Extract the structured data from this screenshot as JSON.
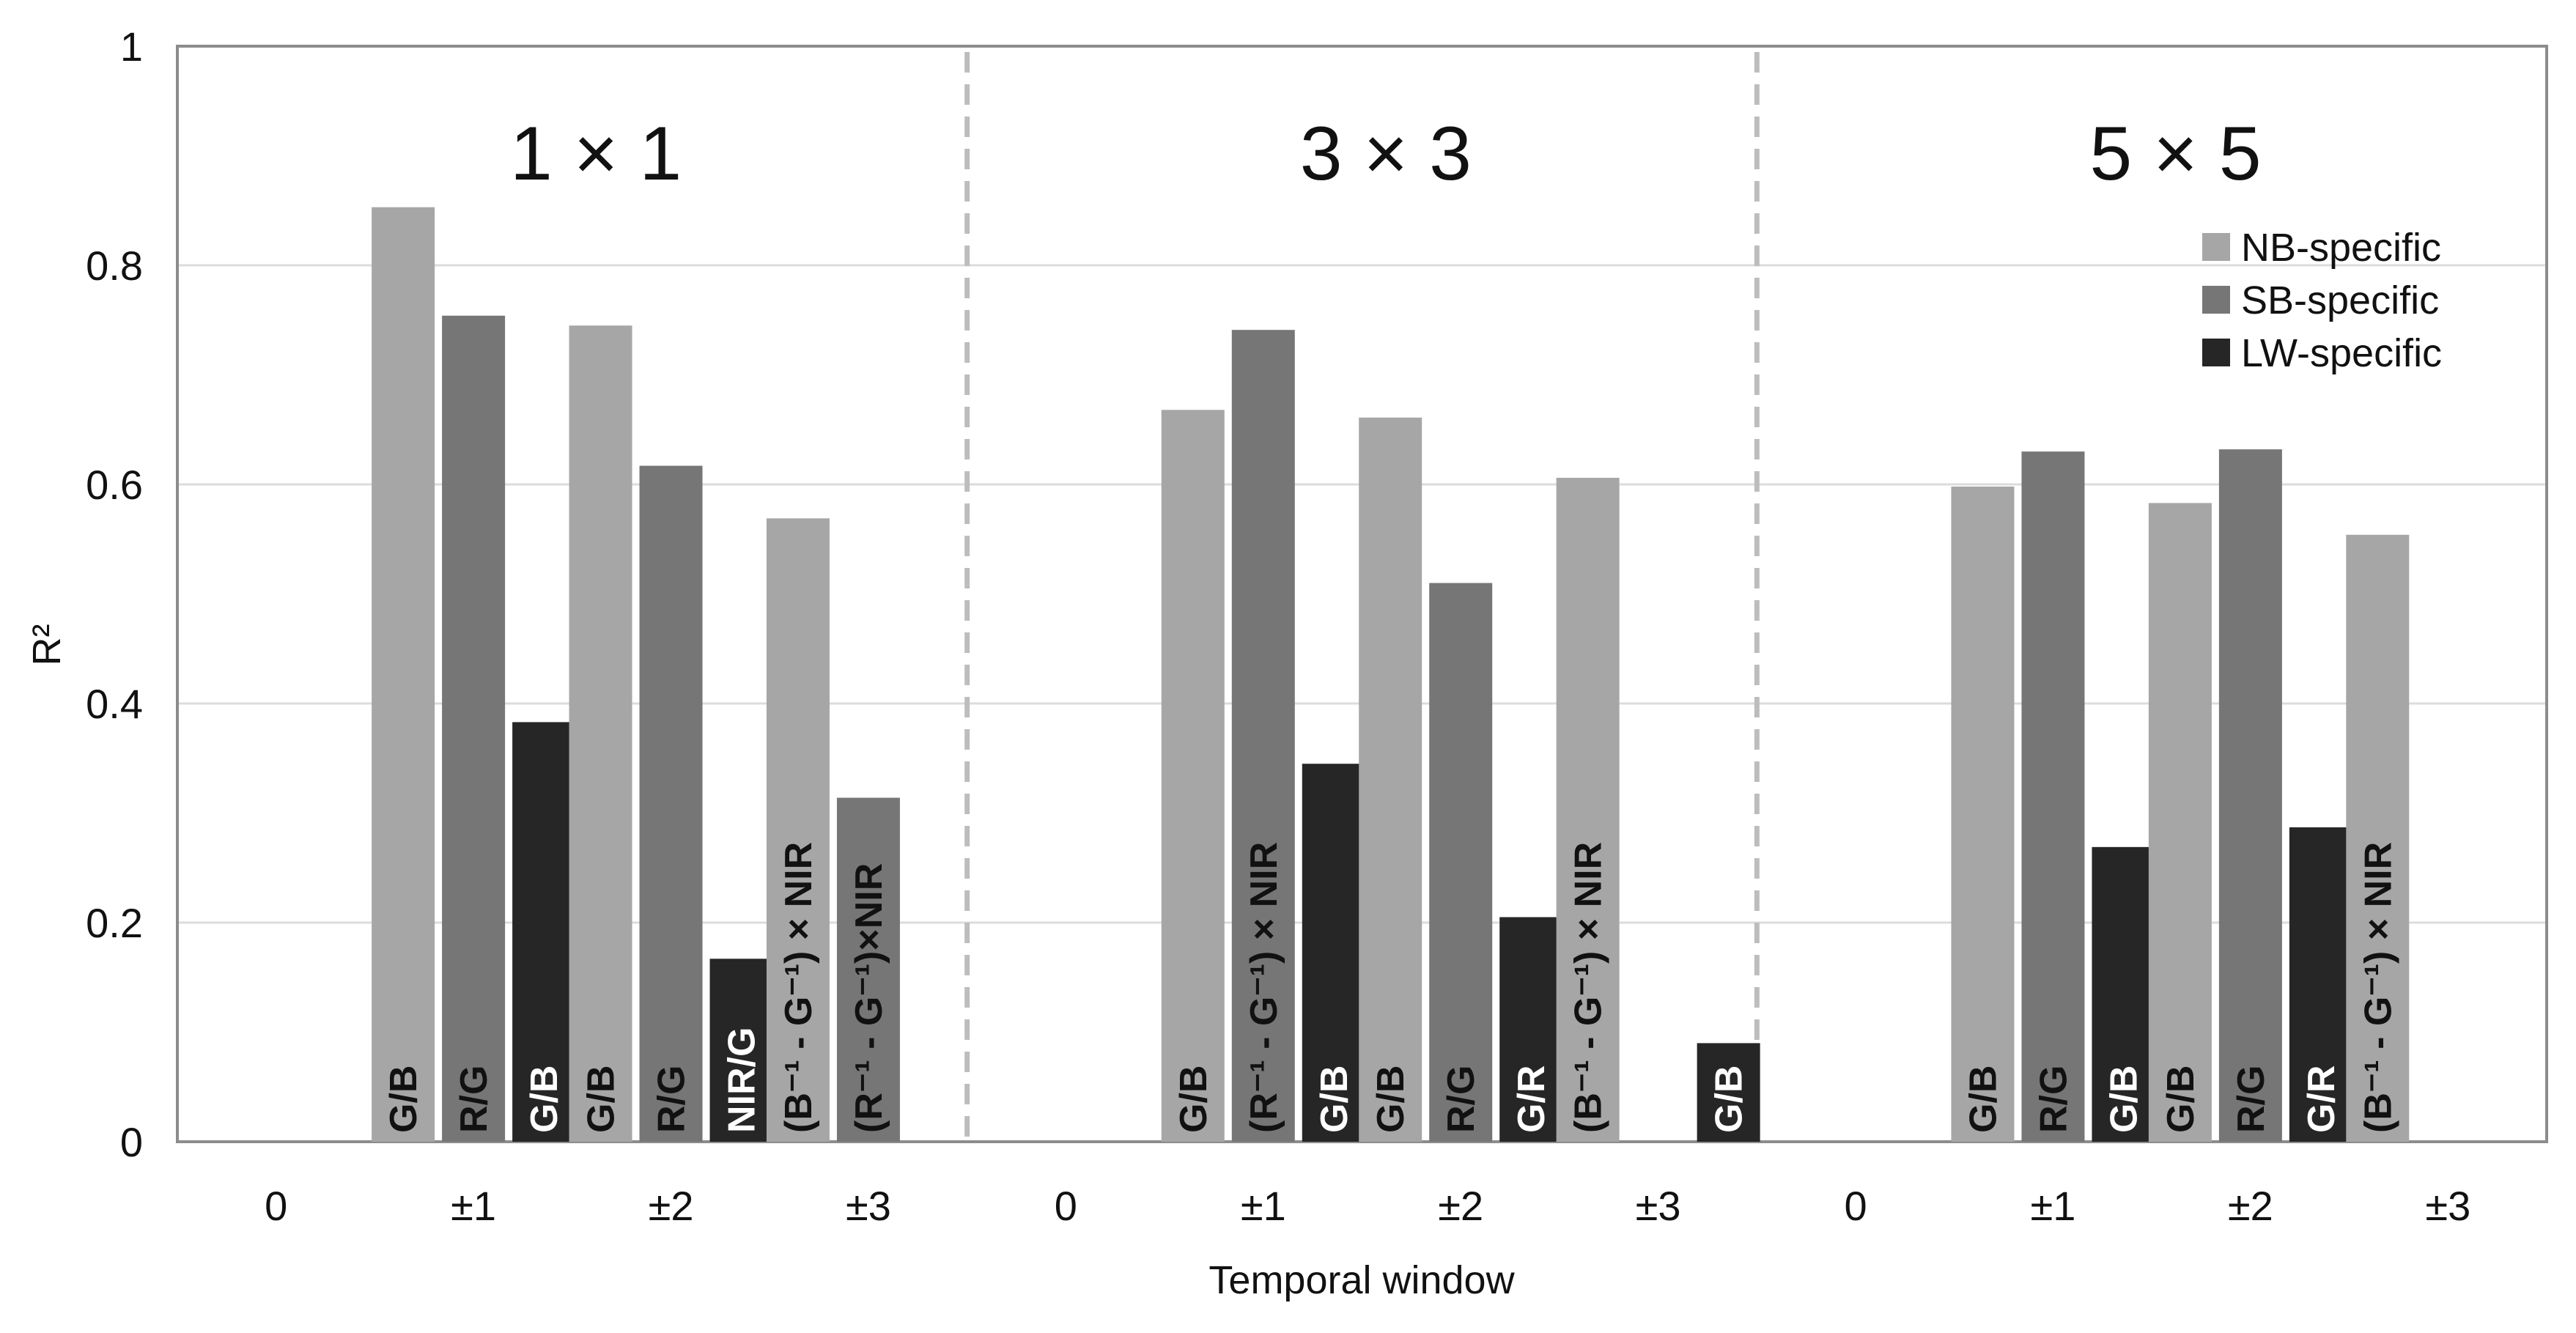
{
  "chart_data": {
    "type": "bar",
    "title": "",
    "xlabel": "Temporal window",
    "ylabel": "R²",
    "ylim": [
      0,
      1
    ],
    "yticks": [
      "0",
      "0.2",
      "0.4",
      "0.6",
      "0.8",
      "1"
    ],
    "grid": true,
    "legend": "top-right",
    "legend_entries": [
      "NB-specific",
      "SB-specific",
      "LW-specific"
    ],
    "colors": {
      "NB-specific": "#a6a6a6",
      "SB-specific": "#767676",
      "LW-specific": "#262626"
    },
    "panels": [
      {
        "title": "1 × 1",
        "categories": [
          "0",
          "±1",
          "±2",
          "±3"
        ],
        "series": [
          {
            "name": "NB-specific",
            "values": [
              null,
              0.853,
              0.745,
              0.569
            ],
            "labels": [
              null,
              "G/B",
              "G/B",
              "(B⁻¹ - G⁻¹) × NIR"
            ]
          },
          {
            "name": "SB-specific",
            "values": [
              null,
              0.754,
              0.617,
              0.314
            ],
            "labels": [
              null,
              "R/G",
              "R/G",
              "(R⁻¹ - G⁻¹)×NIR"
            ]
          },
          {
            "name": "LW-specific",
            "values": [
              null,
              0.383,
              0.167,
              null
            ],
            "labels": [
              null,
              "G/B",
              "NIR/G",
              null
            ]
          }
        ]
      },
      {
        "title": "3 × 3",
        "categories": [
          "0",
          "±1",
          "±2",
          "±3"
        ],
        "series": [
          {
            "name": "NB-specific",
            "values": [
              null,
              0.668,
              0.661,
              0.606
            ],
            "labels": [
              null,
              "G/B",
              "G/B",
              "(B⁻¹ - G⁻¹) × NIR"
            ]
          },
          {
            "name": "SB-specific",
            "values": [
              null,
              0.741,
              0.51,
              null
            ],
            "labels": [
              null,
              "(R⁻¹ - G⁻¹) × NIR",
              "R/G",
              null
            ]
          },
          {
            "name": "LW-specific",
            "values": [
              null,
              0.345,
              0.205,
              0.09
            ],
            "labels": [
              null,
              "G/B",
              "G/R",
              "G/B"
            ]
          }
        ]
      },
      {
        "title": "5 × 5",
        "categories": [
          "0",
          "±1",
          "±2",
          "±3"
        ],
        "series": [
          {
            "name": "NB-specific",
            "values": [
              null,
              0.598,
              0.583,
              0.554
            ],
            "labels": [
              null,
              "G/B",
              "G/B",
              "(B⁻¹ - G⁻¹) × NIR"
            ]
          },
          {
            "name": "SB-specific",
            "values": [
              null,
              0.63,
              0.632,
              null
            ],
            "labels": [
              null,
              "R/G",
              "R/G",
              null
            ]
          },
          {
            "name": "LW-specific",
            "values": [
              null,
              0.269,
              0.287,
              null
            ],
            "labels": [
              null,
              "G/B",
              "G/R",
              null
            ]
          }
        ]
      }
    ]
  }
}
